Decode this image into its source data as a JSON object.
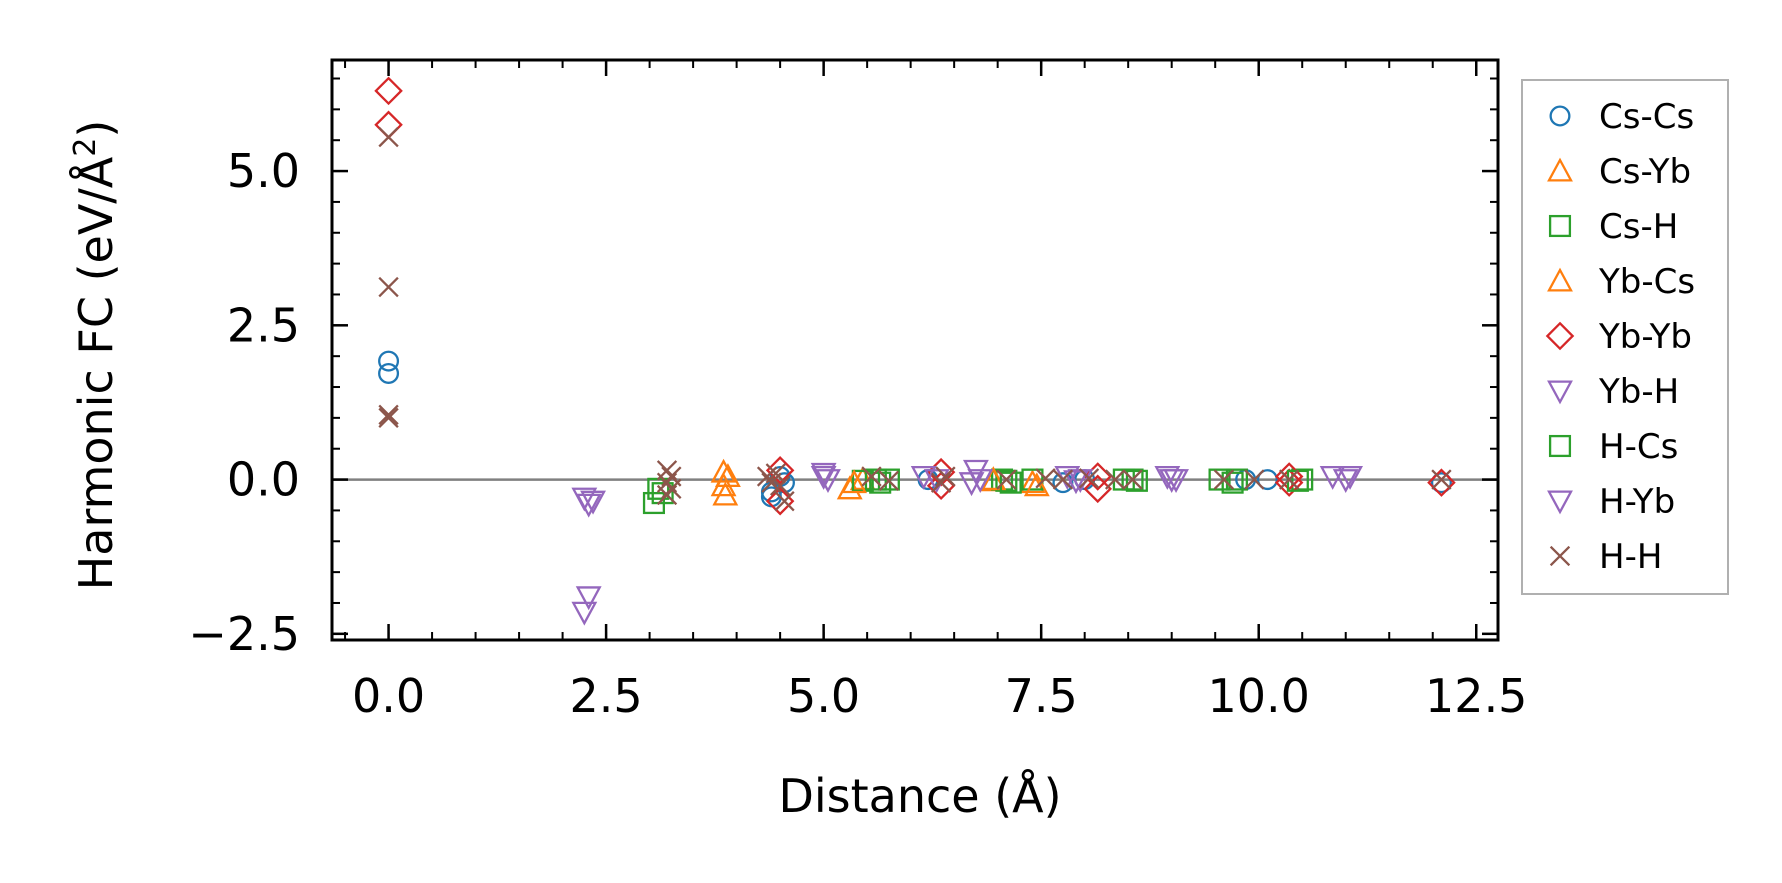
{
  "chart_data": {
    "type": "scatter",
    "title": "",
    "xlabel": "Distance (Å)",
    "ylabel_main": "Harmonic FC (eV/Å",
    "ylabel_sup": "2",
    "ylabel_end": ")",
    "xlim": [
      -0.65,
      12.75
    ],
    "ylim": [
      -2.6,
      6.8
    ],
    "xticks": [
      0.0,
      2.5,
      5.0,
      7.5,
      10.0,
      12.5
    ],
    "xtick_labels": [
      "0.0",
      "2.5",
      "5.0",
      "7.5",
      "10.0",
      "12.5"
    ],
    "yticks": [
      -2.5,
      0.0,
      2.5,
      5.0
    ],
    "ytick_labels": [
      "−2.5",
      "0.0",
      "2.5",
      "5.0"
    ],
    "minor_step_x": 0.5,
    "minor_step_y": 0.5,
    "zero_line": true,
    "grid": false,
    "legend_position": "outside-right",
    "series": [
      {
        "name": "Cs-Cs",
        "marker": "circle",
        "color": "#1f77b4",
        "points": [
          [
            0,
            1.92
          ],
          [
            0,
            1.72
          ],
          [
            4.4,
            -0.2
          ],
          [
            4.4,
            -0.28
          ],
          [
            4.5,
            0.05
          ],
          [
            4.55,
            -0.05
          ],
          [
            6.2,
            0.0
          ],
          [
            7.75,
            -0.05
          ],
          [
            8.0,
            0.0
          ],
          [
            9.85,
            0.0
          ],
          [
            10.1,
            0.0
          ],
          [
            12.1,
            -0.05
          ]
        ]
      },
      {
        "name": "Cs-Yb",
        "marker": "triangle-up",
        "color": "#ff7f0e",
        "points": [
          [
            3.85,
            0.12
          ],
          [
            3.85,
            -0.1
          ],
          [
            3.87,
            -0.25
          ],
          [
            5.3,
            -0.15
          ],
          [
            5.45,
            0.0
          ],
          [
            6.95,
            -0.02
          ],
          [
            7.4,
            -0.05
          ]
        ]
      },
      {
        "name": "Cs-H",
        "marker": "square",
        "color": "#2ca02c",
        "points": [
          [
            3.05,
            -0.38
          ],
          [
            3.1,
            -0.15
          ],
          [
            5.45,
            -0.02
          ],
          [
            5.6,
            0.0
          ],
          [
            5.75,
            0.0
          ],
          [
            7.05,
            0.0
          ],
          [
            7.1,
            -0.02
          ],
          [
            7.4,
            0.0
          ],
          [
            8.45,
            0.0
          ],
          [
            8.6,
            -0.02
          ],
          [
            9.55,
            0.0
          ],
          [
            9.75,
            0.0
          ],
          [
            10.5,
            0.0
          ]
        ]
      },
      {
        "name": "Yb-Cs",
        "marker": "triangle-up",
        "color": "#ff7f0e",
        "points": [
          [
            3.9,
            0.05
          ],
          [
            5.35,
            -0.05
          ],
          [
            6.95,
            0.0
          ],
          [
            7.45,
            -0.1
          ]
        ]
      },
      {
        "name": "Yb-Yb",
        "marker": "diamond",
        "color": "#d62728",
        "points": [
          [
            0,
            6.3
          ],
          [
            0,
            5.75
          ],
          [
            4.5,
            0.15
          ],
          [
            4.5,
            -0.35
          ],
          [
            6.35,
            0.12
          ],
          [
            6.35,
            -0.1
          ],
          [
            8.15,
            0.05
          ],
          [
            8.15,
            -0.15
          ],
          [
            10.35,
            0.05
          ],
          [
            10.35,
            -0.05
          ],
          [
            12.1,
            -0.05
          ]
        ]
      },
      {
        "name": "Yb-H",
        "marker": "triangle-down",
        "color": "#9467bd",
        "points": [
          [
            2.25,
            -0.3
          ],
          [
            2.3,
            -0.4
          ],
          [
            2.3,
            -1.9
          ],
          [
            2.25,
            -2.15
          ],
          [
            5.0,
            0.1
          ],
          [
            5.05,
            0.0
          ],
          [
            6.15,
            0.05
          ],
          [
            6.3,
            0.0
          ],
          [
            6.75,
            0.15
          ],
          [
            6.8,
            0.0
          ],
          [
            7.8,
            0.05
          ],
          [
            7.9,
            -0.02
          ],
          [
            8.95,
            0.05
          ],
          [
            9.05,
            0.0
          ],
          [
            10.85,
            0.05
          ],
          [
            11.05,
            0.05
          ]
        ]
      },
      {
        "name": "H-Cs",
        "marker": "square",
        "color": "#2ca02c",
        "points": [
          [
            3.15,
            -0.22
          ],
          [
            5.65,
            -0.05
          ],
          [
            7.15,
            -0.05
          ],
          [
            8.55,
            0.0
          ],
          [
            9.7,
            -0.05
          ],
          [
            10.45,
            -0.02
          ]
        ]
      },
      {
        "name": "H-Yb",
        "marker": "triangle-down",
        "color": "#9467bd",
        "points": [
          [
            2.35,
            -0.35
          ],
          [
            5.0,
            0.05
          ],
          [
            6.7,
            -0.05
          ],
          [
            7.95,
            0.0
          ],
          [
            9.0,
            0.0
          ],
          [
            11.0,
            0.0
          ]
        ]
      },
      {
        "name": "H-H",
        "marker": "x",
        "color": "#8c564b",
        "points": [
          [
            0,
            5.55
          ],
          [
            0,
            3.12
          ],
          [
            0,
            1.05
          ],
          [
            0,
            1.0
          ],
          [
            3.2,
            0.15
          ],
          [
            3.25,
            0.05
          ],
          [
            3.2,
            -0.05
          ],
          [
            3.25,
            -0.15
          ],
          [
            3.2,
            -0.25
          ],
          [
            4.35,
            0.05
          ],
          [
            4.4,
            -0.05
          ],
          [
            4.45,
            0.1
          ],
          [
            4.5,
            -0.1
          ],
          [
            4.55,
            -0.35
          ],
          [
            5.55,
            0.05
          ],
          [
            5.75,
            -0.02
          ],
          [
            6.4,
            0.05
          ],
          [
            6.35,
            -0.05
          ],
          [
            7.1,
            0.0
          ],
          [
            7.55,
            0.02
          ],
          [
            7.75,
            0.0
          ],
          [
            8.05,
            0.02
          ],
          [
            8.35,
            0.0
          ],
          [
            8.55,
            0.0
          ],
          [
            9.6,
            0.0
          ],
          [
            9.95,
            0.0
          ],
          [
            10.35,
            0.0
          ],
          [
            12.1,
            0.0
          ]
        ]
      }
    ]
  }
}
